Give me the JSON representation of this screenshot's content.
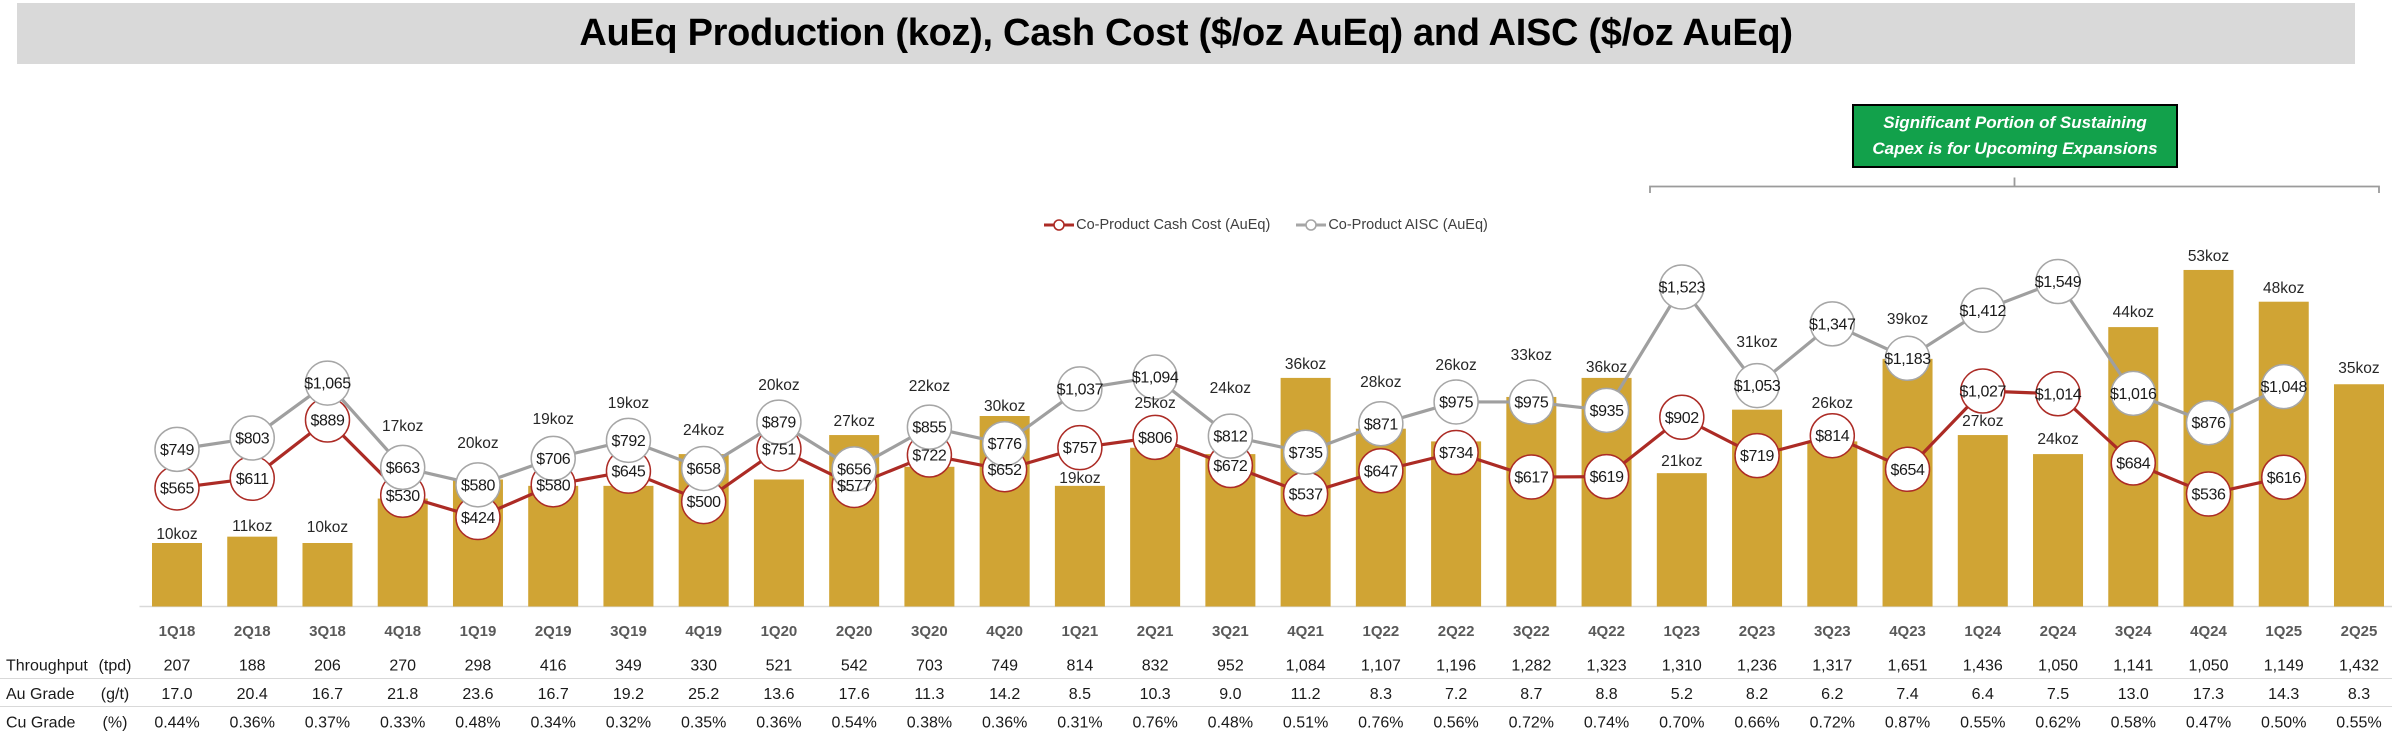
{
  "title": "AuEq Production (koz), Cash Cost ($/oz AuEq) and AISC ($/oz AuEq)",
  "annotation": {
    "lines": [
      "Significant Portion of Sustaining",
      "Capex is for Upcoming Expansions"
    ],
    "fill_color": "#12A14B",
    "text_color": "#FFFFFF"
  },
  "legend": {
    "items": [
      {
        "label": "Co-Product Cash Cost (AuEq)",
        "color": "#AC2B25",
        "marker": "line-open-circle"
      },
      {
        "label": "Co-Product AISC (AuEq)",
        "color": "#A6A6A6",
        "marker": "line-open-circle"
      }
    ]
  },
  "chart_data": {
    "type": "bar+line combo",
    "title": "AuEq Production (koz), Cash Cost ($/oz AuEq) and AISC ($/oz AuEq)",
    "categories": [
      "1Q18",
      "2Q18",
      "3Q18",
      "4Q18",
      "1Q19",
      "2Q19",
      "3Q19",
      "4Q19",
      "1Q20",
      "2Q20",
      "3Q20",
      "4Q20",
      "1Q21",
      "2Q21",
      "3Q21",
      "4Q21",
      "1Q22",
      "2Q22",
      "3Q22",
      "4Q22",
      "1Q23",
      "2Q23",
      "3Q23",
      "4Q23",
      "1Q24",
      "2Q24",
      "3Q24",
      "4Q24",
      "1Q25",
      "2Q25"
    ],
    "series": [
      {
        "name": "AuEq Production",
        "type": "bar",
        "unit": "koz",
        "color": "#D0A434",
        "values": [
          10,
          11,
          10,
          17,
          20,
          19,
          19,
          24,
          20,
          27,
          22,
          30,
          19,
          25,
          24,
          36,
          28,
          26,
          33,
          36,
          21,
          31,
          26,
          39,
          27,
          24,
          44,
          53,
          48,
          35
        ],
        "label_suffix": "koz"
      },
      {
        "name": "Co-Product Cash Cost (AuEq)",
        "type": "line",
        "unit": "$/oz",
        "color": "#AC2B25",
        "values": [
          565,
          611,
          889,
          530,
          424,
          580,
          645,
          500,
          751,
          577,
          722,
          652,
          757,
          806,
          672,
          537,
          647,
          734,
          617,
          619,
          902,
          719,
          814,
          654,
          1027,
          1014,
          684,
          536,
          616,
          null
        ],
        "label_prefix": "$"
      },
      {
        "name": "Co-Product AISC (AuEq)",
        "type": "line",
        "unit": "$/oz",
        "color": "#A6A6A6",
        "values": [
          749,
          803,
          1065,
          663,
          580,
          706,
          792,
          658,
          879,
          656,
          855,
          776,
          1037,
          1094,
          812,
          735,
          871,
          975,
          975,
          935,
          1523,
          1053,
          1347,
          1183,
          1412,
          1549,
          1016,
          876,
          1048,
          null
        ],
        "label_prefix": "$"
      }
    ],
    "value_axis": {
      "bar_axis_implied_max_koz": 83,
      "line_axis_implied_max_dollars": 2510,
      "gridlines": false,
      "y_axis_labels": false
    },
    "legend_position": "top-center",
    "table": {
      "rows": [
        {
          "label": "Throughput",
          "unit": "(tpd)",
          "values": [
            "207",
            "188",
            "206",
            "270",
            "298",
            "416",
            "349",
            "330",
            "521",
            "542",
            "703",
            "749",
            "814",
            "832",
            "952",
            "1,084",
            "1,107",
            "1,196",
            "1,282",
            "1,323",
            "1,310",
            "1,236",
            "1,317",
            "1,651",
            "1,436",
            "1,050",
            "1,141",
            "1,050",
            "1,149",
            "1,432"
          ]
        },
        {
          "label": "Au Grade",
          "unit": "(g/t)",
          "values": [
            "17.0",
            "20.4",
            "16.7",
            "21.8",
            "23.6",
            "16.7",
            "19.2",
            "25.2",
            "13.6",
            "17.6",
            "11.3",
            "14.2",
            "8.5",
            "10.3",
            "9.0",
            "11.2",
            "8.3",
            "7.2",
            "8.7",
            "8.8",
            "5.2",
            "8.2",
            "6.2",
            "7.4",
            "6.4",
            "7.5",
            "13.0",
            "17.3",
            "14.3",
            "8.3"
          ]
        },
        {
          "label": "Cu Grade",
          "unit": "(%)",
          "values": [
            "0.44%",
            "0.36%",
            "0.37%",
            "0.33%",
            "0.48%",
            "0.34%",
            "0.32%",
            "0.35%",
            "0.36%",
            "0.54%",
            "0.38%",
            "0.36%",
            "0.31%",
            "0.76%",
            "0.48%",
            "0.51%",
            "0.76%",
            "0.56%",
            "0.72%",
            "0.74%",
            "0.70%",
            "0.66%",
            "0.72%",
            "0.87%",
            "0.55%",
            "0.62%",
            "0.58%",
            "0.47%",
            "0.50%",
            "0.55%"
          ]
        }
      ]
    },
    "colors": {
      "bar": "#D0A434",
      "cash_cost_line": "#AC2B25",
      "aisc_line": "#9F9F9F",
      "title_band": "#D9D9D9",
      "annotation_green": "#12A14B",
      "axis_gray": "#D9D9D9",
      "category_label": "#595959",
      "bracket": "#9B9B9B"
    }
  }
}
